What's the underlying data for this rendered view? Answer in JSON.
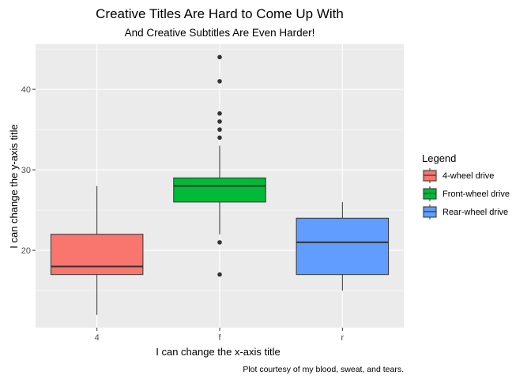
{
  "chart_data": {
    "type": "box",
    "title": "Creative Titles Are Hard to Come Up With",
    "subtitle": "And Creative Subtitles Are Even Harder!",
    "xlabel": "I can change the x-axis title",
    "ylabel": "I can change the y-axis title",
    "caption": "Plot courtesy of my blood, sweat, and tears.",
    "categories": [
      "4",
      "f",
      "r"
    ],
    "ylim": [
      10.4,
      45.6
    ],
    "yticks": [
      20,
      30,
      40
    ],
    "grid": true,
    "legend": {
      "title": "Legend",
      "position": "right",
      "entries": [
        "4-wheel drive",
        "Front-wheel drive",
        "Rear-wheel drive"
      ]
    },
    "series": [
      {
        "category": "4",
        "name": "4-wheel drive",
        "color": "#F8766D",
        "whisker_low": 12,
        "q1": 17,
        "median": 18,
        "q3": 22,
        "whisker_high": 28,
        "outliers": []
      },
      {
        "category": "f",
        "name": "Front-wheel drive",
        "color": "#00BA38",
        "whisker_low": 22,
        "q1": 26,
        "median": 28,
        "q3": 29,
        "whisker_high": 33,
        "outliers": [
          17,
          21,
          34,
          35,
          36,
          37,
          41,
          44
        ]
      },
      {
        "category": "r",
        "name": "Rear-wheel drive",
        "color": "#619CFF",
        "whisker_low": 15,
        "q1": 17,
        "median": 21,
        "q3": 24,
        "whisker_high": 26,
        "outliers": []
      }
    ]
  }
}
